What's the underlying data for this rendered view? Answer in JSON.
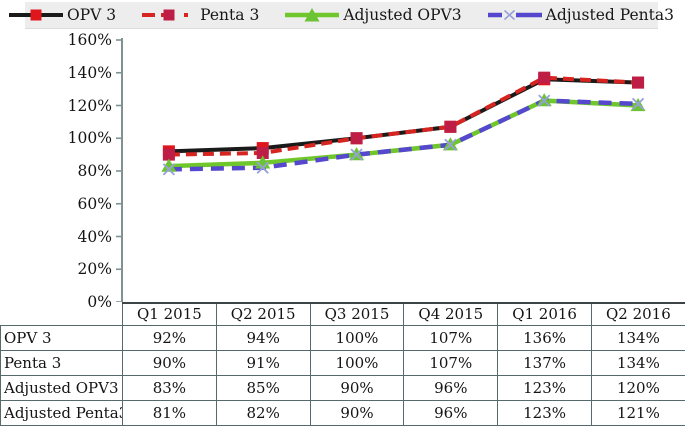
{
  "legend": {
    "items": [
      {
        "label": "OPV 3",
        "line_color": "#1a1a1a",
        "line_style": "solid",
        "marker": "square",
        "marker_color": "#e0161d"
      },
      {
        "label": "Penta 3",
        "line_color": "#d62420",
        "line_style": "dashed",
        "marker": "square",
        "marker_color": "#be1e46"
      },
      {
        "label": "Adjusted OPV3",
        "line_color": "#6fc72b",
        "line_style": "solid",
        "marker": "triangle",
        "marker_color": "#6cc333"
      },
      {
        "label": "Adjusted Penta3",
        "line_color": "#5548ce",
        "line_style": "dashed",
        "marker": "x",
        "marker_color": "#97a0dc"
      }
    ]
  },
  "chart_data": {
    "type": "line",
    "categories": [
      "Q1 2015",
      "Q2 2015",
      "Q3 2015",
      "Q4 2015",
      "Q1 2016",
      "Q2 2016"
    ],
    "series": [
      {
        "name": "OPV 3",
        "values": [
          92,
          94,
          100,
          107,
          136,
          134
        ]
      },
      {
        "name": "Penta 3",
        "values": [
          90,
          91,
          100,
          107,
          137,
          134
        ]
      },
      {
        "name": "Adjusted OPV3",
        "values": [
          83,
          85,
          90,
          96,
          123,
          120
        ]
      },
      {
        "name": "Adjusted Penta3",
        "values": [
          81,
          82,
          90,
          96,
          123,
          121
        ]
      }
    ],
    "unit": "%",
    "ylim": [
      0,
      160
    ],
    "ytick_step": 20,
    "ytick_labels": [
      "0%",
      "20%",
      "40%",
      "60%",
      "80%",
      "100%",
      "120%",
      "140%",
      "160%"
    ],
    "grid": false,
    "legend_position": "top"
  }
}
